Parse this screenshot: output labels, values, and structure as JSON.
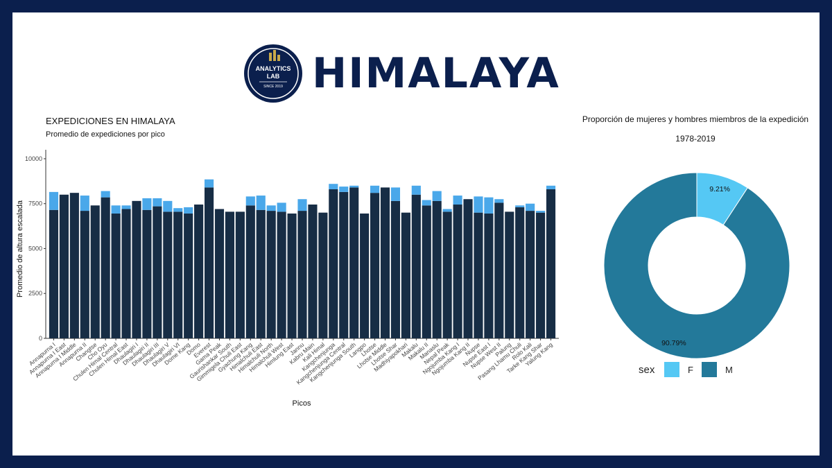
{
  "header": {
    "title": "HIMALAYA",
    "logo": {
      "icon": "analytics-lab-seal",
      "line1": "ANALYTICS",
      "line2": "LAB",
      "line3": "SINCE 2019"
    }
  },
  "chart_data": [
    {
      "type": "bar",
      "stacked": true,
      "title": "EXPEDICIONES EN HIMALAYA",
      "subtitle": "Promedio de expediciones por pico",
      "xlabel": "Picos",
      "ylabel": "Promedio de altura escalada",
      "ylim": [
        0,
        10500
      ],
      "yticks": [
        0,
        2500,
        5000,
        7500,
        10000
      ],
      "categories": [
        "Annapurna I",
        "Annapurna I East",
        "Annapurna I Middle",
        "Annapurna II",
        "Changtse",
        "Cho Oyu",
        "Chulen Himal Central",
        "Chulen Himal East",
        "Dhaulagiri I",
        "Dhaulagiri II",
        "Dhaulagiri III",
        "Dhaulagiri V",
        "Dhaulagiri VI",
        "Dome Kang",
        "Domo",
        "Everest",
        "Gama Peak",
        "Gaurishankar South",
        "Gimmigela Chuli East",
        "Gyachung Kang",
        "Himalchuli East",
        "Himalchuli North",
        "Himalchuli West",
        "Himlung East",
        "Jannu",
        "Kabru Main",
        "Kali Himal",
        "Kangchenjunga",
        "Kangchenjunga Central",
        "Kangchenjunga South",
        "Langpo",
        "Lhotse",
        "Lhotse Middle",
        "Lhotse Shar",
        "Madhiyapokhari",
        "Makalu",
        "Makalu II",
        "Manaslu",
        "Nepal Peak",
        "Ngojumba Kang I",
        "Ngojumba Kang II",
        "Nupse",
        "Nupse East I",
        "Nupse West II",
        "Palung",
        "Pasang Lhamu Chuli",
        "Rolo Kali",
        "Tarke Kang Shar",
        "Yalung Kang"
      ],
      "series": [
        {
          "name": "M",
          "color": "#172d45",
          "values": [
            7150,
            8000,
            8100,
            7100,
            7400,
            7850,
            6950,
            7200,
            7650,
            7150,
            7350,
            7050,
            7050,
            6950,
            7450,
            8400,
            7200,
            7050,
            7050,
            7400,
            7150,
            7100,
            7050,
            6950,
            7100,
            7450,
            7000,
            8300,
            8150,
            8400,
            6950,
            8100,
            8400,
            7650,
            7000,
            8000,
            7400,
            7650,
            7050,
            7450,
            7750,
            7000,
            6950,
            7550,
            7050,
            7300,
            7100,
            7000,
            8300
          ]
        },
        {
          "name": "F",
          "color": "#4aa8ea",
          "values": [
            1000,
            0,
            0,
            850,
            0,
            350,
            450,
            200,
            0,
            650,
            450,
            600,
            200,
            350,
            0,
            450,
            0,
            0,
            0,
            500,
            800,
            300,
            500,
            0,
            650,
            0,
            0,
            300,
            300,
            100,
            0,
            400,
            0,
            750,
            0,
            500,
            300,
            550,
            150,
            500,
            0,
            900,
            900,
            200,
            0,
            100,
            400,
            100,
            200
          ]
        }
      ]
    },
    {
      "type": "pie",
      "donut": true,
      "title": "Proporción de mujeres y hombres miembros de la expedición",
      "subtitle": "1978-2019",
      "legend_title": "sex",
      "legend_position": "bottom",
      "slices": [
        {
          "label": "F",
          "value": 9.21,
          "display": "9.21%",
          "color": "#55c8f4"
        },
        {
          "label": "M",
          "value": 90.79,
          "display": "90.79%",
          "color": "#23799a"
        }
      ]
    }
  ]
}
